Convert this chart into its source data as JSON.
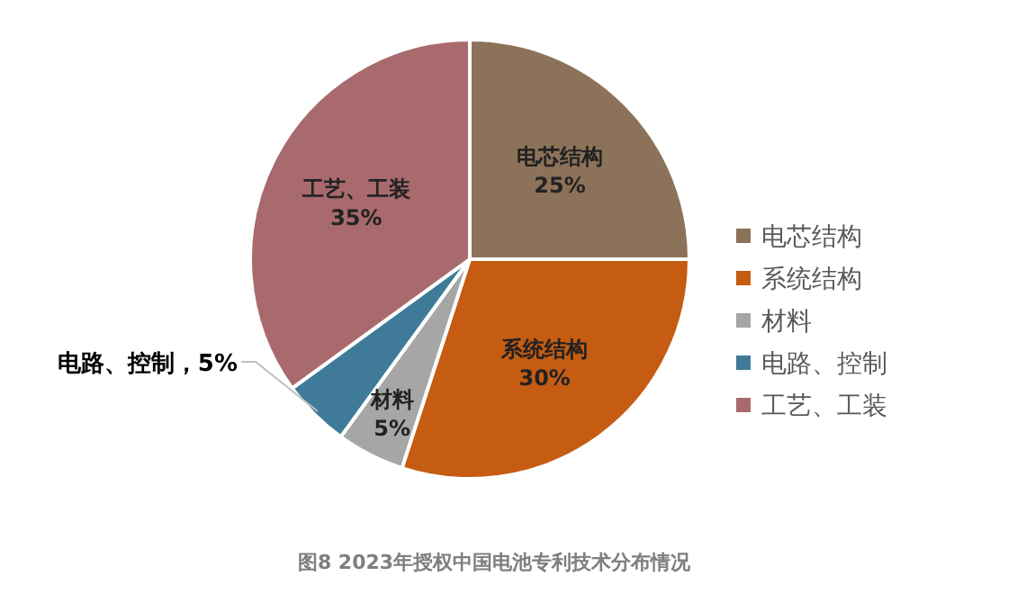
{
  "chart_data": {
    "type": "pie",
    "categories": [
      "电芯结构",
      "系统结构",
      "材料",
      "电路、控制",
      "工艺、工装"
    ],
    "values": [
      25,
      30,
      5,
      5,
      35
    ],
    "value_labels": [
      "25%",
      "30%",
      "5%",
      "，5%",
      "35%"
    ],
    "colors": [
      "#8c7259",
      "#c55c12",
      "#a6a6a6",
      "#3f7b99",
      "#a86a6c"
    ],
    "legend": "right",
    "annotations": [
      "图8 2023年授权中国电池专利技术分布情况"
    ]
  }
}
